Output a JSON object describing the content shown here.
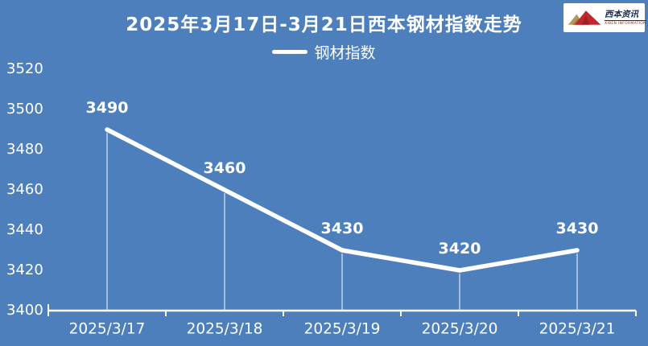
{
  "colors": {
    "background": "#4e7fbd",
    "foreground": "#ffffff",
    "line": "#ffffff",
    "logo_gold": "#b5985a",
    "logo_red": "#c1272d",
    "logo_navy": "#1b2f55"
  },
  "chart_data": {
    "type": "line",
    "title": "2025年3月17日-3月21日西本钢材指数走势",
    "legend": "钢材指数",
    "legend_position": "top",
    "categories": [
      "2025/3/17",
      "2025/3/18",
      "2025/3/19",
      "2025/3/20",
      "2025/3/21"
    ],
    "series": [
      {
        "name": "钢材指数",
        "values": [
          3490,
          3460,
          3430,
          3420,
          3430
        ]
      }
    ],
    "data_labels": [
      "3490",
      "3460",
      "3430",
      "3420",
      "3430"
    ],
    "y_ticks": [
      3400,
      3420,
      3440,
      3460,
      3480,
      3500,
      3520
    ],
    "ylim": [
      3400,
      3520
    ],
    "xlabel": "",
    "ylabel": "",
    "grid": false,
    "drop_lines": true,
    "line_color": "#ffffff"
  },
  "logo": {
    "cn": "西本资讯",
    "en": "XIBEN INFORMATION"
  }
}
